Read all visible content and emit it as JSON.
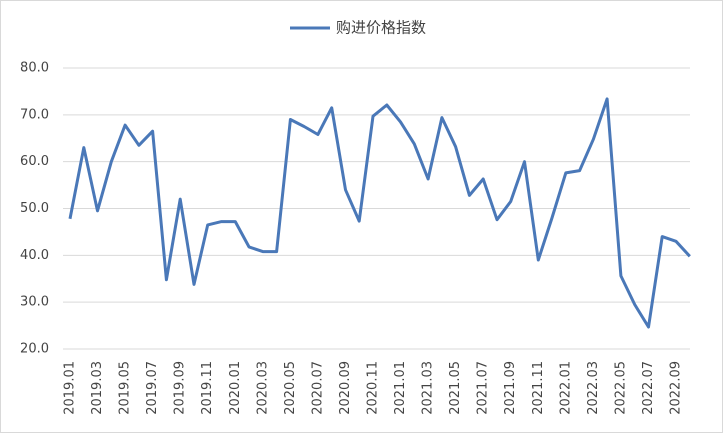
{
  "chart_data": {
    "type": "line",
    "categories": [
      "2019.01",
      null,
      "2019.03",
      null,
      "2019.05",
      null,
      "2019.07",
      null,
      "2019.09",
      null,
      "2019.11",
      null,
      "2020.01",
      null,
      "2020.03",
      null,
      "2020.05",
      null,
      "2020.07",
      null,
      "2020.09",
      null,
      "2020.11",
      null,
      "2021.01",
      null,
      "2021.03",
      null,
      "2021.05",
      null,
      "2021.07",
      null,
      "2021.09",
      null,
      "2021.11",
      null,
      "2022.01",
      null,
      "2022.03",
      null,
      "2022.05",
      null,
      "2022.07",
      null,
      "2022.09",
      null
    ],
    "series": [
      {
        "name": "购进价格指数",
        "color": "#4a78b8",
        "values": [
          47.8,
          63,
          49.5,
          60,
          67.8,
          63.5,
          66.5,
          34.8,
          52,
          33.8,
          46.5,
          47.2,
          47.2,
          41.8,
          40.8,
          40.8,
          69,
          67.5,
          65.8,
          71.5,
          54,
          47.3,
          69.7,
          72.1,
          68.5,
          63.8,
          56.3,
          69.4,
          63.2,
          52.8,
          56.3,
          47.6,
          51.5,
          60,
          39,
          48,
          57.6,
          58.1,
          64.8,
          73.4,
          35.6,
          29.5,
          24.7,
          44,
          43,
          39.8
        ]
      }
    ],
    "ylim": [
      20,
      80
    ],
    "yticks": [
      {
        "value": 20,
        "label": "20.0"
      },
      {
        "value": 30,
        "label": "30.0"
      },
      {
        "value": 40,
        "label": "40.0"
      },
      {
        "value": 50,
        "label": "50.0"
      },
      {
        "value": 60,
        "label": "60.0"
      },
      {
        "value": 70,
        "label": "70.0"
      },
      {
        "value": 80,
        "label": "80.0"
      }
    ],
    "grid": true,
    "legend": "top"
  }
}
